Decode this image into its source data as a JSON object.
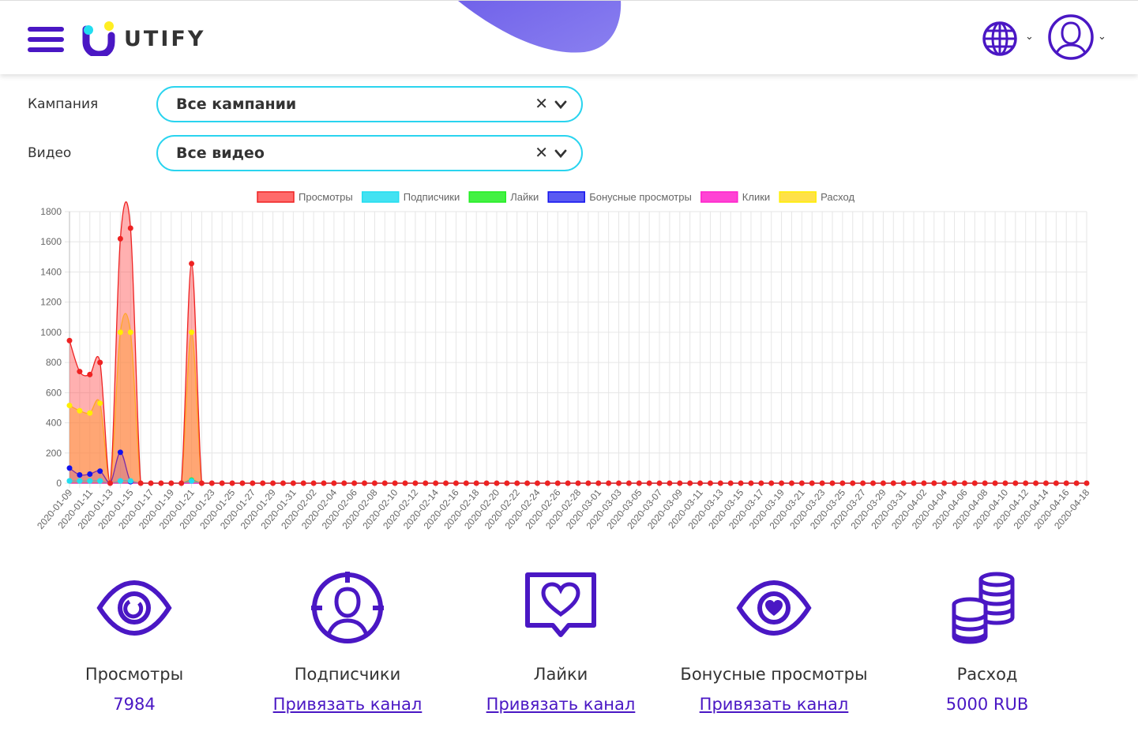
{
  "brand": {
    "name": "UTIFY"
  },
  "colors": {
    "accent": "#4a17c4",
    "select_border": "#2ad4ef"
  },
  "header": {
    "menu_icon": "hamburger-icon",
    "language_icon": "globe-icon",
    "profile_icon": "user-avatar-icon"
  },
  "filters": {
    "campaign": {
      "label": "Кампания",
      "value": "Все кампании"
    },
    "video": {
      "label": "Видео",
      "value": "Все видео"
    }
  },
  "chart_data": {
    "type": "line",
    "x_start": "2020-01-09",
    "x_end": "2020-04-18",
    "x_tick_labels": [
      "2020-01-09",
      "2020-01-11",
      "2020-01-13",
      "2020-01-15",
      "2020-01-17",
      "2020-01-19",
      "2020-01-21",
      "2020-01-23",
      "2020-01-25",
      "2020-01-27",
      "2020-01-29",
      "2020-01-31",
      "2020-02-02",
      "2020-02-04",
      "2020-02-06",
      "2020-02-08",
      "2020-02-10",
      "2020-02-12",
      "2020-02-14",
      "2020-02-16",
      "2020-02-18",
      "2020-02-20",
      "2020-02-22",
      "2020-02-24",
      "2020-02-26",
      "2020-02-28",
      "2020-03-01",
      "2020-03-03",
      "2020-03-05",
      "2020-03-07",
      "2020-03-09",
      "2020-03-11",
      "2020-03-13",
      "2020-03-15",
      "2020-03-17",
      "2020-03-19",
      "2020-03-21",
      "2020-03-23",
      "2020-03-25",
      "2020-03-27",
      "2020-03-29",
      "2020-03-31",
      "2020-04-02",
      "2020-04-04",
      "2020-04-06",
      "2020-04-08",
      "2020-04-10",
      "2020-04-12",
      "2020-04-14",
      "2020-04-16",
      "2020-04-18"
    ],
    "ylim": [
      0,
      1800
    ],
    "y_ticks": [
      0,
      200,
      400,
      600,
      800,
      1000,
      1200,
      1400,
      1600,
      1800
    ],
    "grid": true,
    "legend_position": "top",
    "series": [
      {
        "name": "Просмотры",
        "color": "#ee2222",
        "fill": "rgba(255,80,80,0.45)",
        "values": {
          "2020-01-09": 945,
          "2020-01-10": 740,
          "2020-01-11": 720,
          "2020-01-12": 800,
          "2020-01-14": 1620,
          "2020-01-15": 1690,
          "2020-01-21": 1455
        }
      },
      {
        "name": "Подписчики",
        "color": "#22ddf0",
        "fill": "rgba(34,221,240,0.35)",
        "values": {
          "2020-01-09": 15,
          "2020-01-10": 15,
          "2020-01-11": 15,
          "2020-01-12": 15,
          "2020-01-14": 15,
          "2020-01-15": 15,
          "2020-01-21": 15
        }
      },
      {
        "name": "Лайки",
        "color": "#22ee22",
        "fill": "rgba(34,238,34,0.35)",
        "values": {
          "2020-01-21": 20
        }
      },
      {
        "name": "Бонусные просмотры",
        "color": "#1111ee",
        "fill": "rgba(60,60,240,0.25)",
        "values": {
          "2020-01-09": 100,
          "2020-01-10": 55,
          "2020-01-11": 60,
          "2020-01-12": 80,
          "2020-01-14": 205,
          "2020-01-15": 10
        }
      },
      {
        "name": "Клики",
        "color": "#ff22cc",
        "fill": "rgba(255,34,204,0.3)",
        "values": {}
      },
      {
        "name": "Расход",
        "color": "#ffee00",
        "fill": "rgba(255,220,40,0.5)",
        "values": {
          "2020-01-09": 515,
          "2020-01-10": 480,
          "2020-01-11": 465,
          "2020-01-12": 530,
          "2020-01-14": 1000,
          "2020-01-15": 1000,
          "2020-01-21": 1000
        }
      }
    ]
  },
  "stats": [
    {
      "icon": "eye-icon",
      "label": "Просмотры",
      "value": "7984"
    },
    {
      "icon": "subscriber-target-icon",
      "label": "Подписчики",
      "link": "Привязать канал"
    },
    {
      "icon": "heart-bubble-icon",
      "label": "Лайки",
      "link": "Привязать канал"
    },
    {
      "icon": "eye-heart-icon",
      "label": "Бонусные просмотры",
      "link": "Привязать канал"
    },
    {
      "icon": "coins-icon",
      "label": "Расход",
      "value": "5000 RUB"
    }
  ]
}
